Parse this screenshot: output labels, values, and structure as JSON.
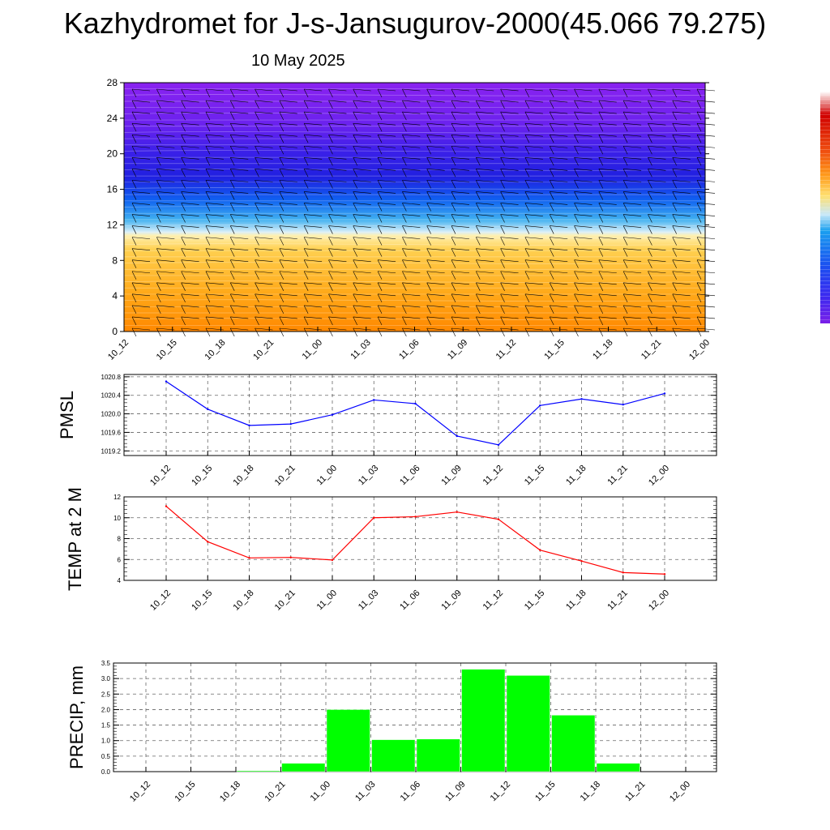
{
  "title": "Kazhydromet for J-s-Jansugurov-2000(45.066 79.275)",
  "subtitle": "10 May 2025",
  "chart_data": [
    {
      "type": "heatmap",
      "name": "vertical cross-section",
      "x_ticks": [
        "10_12",
        "10_15",
        "10_18",
        "10_21",
        "11_00",
        "11_03",
        "11_06",
        "11_09",
        "11_12",
        "11_15",
        "11_18",
        "11_21",
        "12_00"
      ],
      "y_ticks": [
        0,
        4,
        8,
        12,
        16,
        20,
        24,
        28
      ],
      "ylim": [
        0,
        28
      ],
      "colorbar_colors": [
        "#7a1fe8",
        "#3a2af0",
        "#1a50f0",
        "#1aa0f0",
        "#c8e8f8",
        "#ffd24a",
        "#ff9a1a",
        "#f05010",
        "#d00000",
        "#ffffff"
      ],
      "wind_barbs": true
    },
    {
      "type": "line",
      "ylabel": "PMSL",
      "categories": [
        "10_12",
        "10_15",
        "10_18",
        "10_21",
        "11_00",
        "11_03",
        "11_06",
        "11_09",
        "11_12",
        "11_15",
        "11_18",
        "11_21",
        "12_00"
      ],
      "values": [
        1020.7,
        1020.1,
        1019.75,
        1019.78,
        1019.98,
        1020.3,
        1020.22,
        1019.52,
        1019.33,
        1020.18,
        1020.32,
        1020.2,
        1020.44
      ],
      "y_ticks": [
        "1019.2",
        "1019.6",
        "1020.0",
        "1020.4",
        "1020.8"
      ],
      "ylim": [
        1019.1,
        1020.85
      ],
      "color": "#0000ff",
      "grid": true
    },
    {
      "type": "line",
      "ylabel": "TEMP at 2 M",
      "categories": [
        "10_12",
        "10_15",
        "10_18",
        "10_21",
        "11_00",
        "11_03",
        "11_06",
        "11_09",
        "11_12",
        "11_15",
        "11_18",
        "11_21",
        "12_00"
      ],
      "values": [
        11.1,
        7.7,
        6.15,
        6.2,
        5.95,
        10.0,
        10.1,
        10.55,
        9.85,
        6.9,
        5.85,
        4.75,
        4.6
      ],
      "y_ticks": [
        "4",
        "6",
        "8",
        "10",
        "12"
      ],
      "ylim": [
        4,
        12
      ],
      "color": "#ff0000",
      "grid": true
    },
    {
      "type": "bar",
      "ylabel": "PRECIP, mm",
      "categories": [
        "10_12",
        "10_15",
        "10_18",
        "10_21",
        "11_00",
        "11_03",
        "11_06",
        "11_09",
        "11_12",
        "11_15",
        "11_18",
        "11_21",
        "12_00"
      ],
      "values": [
        0,
        0,
        0.03,
        0.27,
        2.0,
        1.03,
        1.05,
        3.3,
        3.1,
        1.82,
        0.27,
        0,
        0
      ],
      "y_ticks": [
        "0.0",
        "0.5",
        "1.0",
        "1.5",
        "2.0",
        "2.5",
        "3.0",
        "3.5"
      ],
      "ylim": [
        0,
        3.5
      ],
      "color": "#00ff00",
      "grid": true
    }
  ]
}
